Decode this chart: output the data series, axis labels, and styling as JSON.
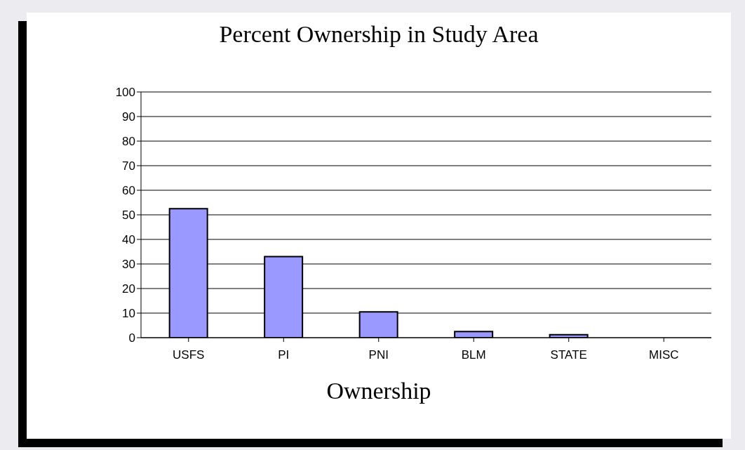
{
  "chart_data": {
    "type": "bar",
    "title": "Percent Ownership in Study Area",
    "xlabel": "Ownership",
    "categories": [
      "USFS",
      "PI",
      "PNI",
      "BLM",
      "STATE",
      "MISC"
    ],
    "values": [
      52.5,
      33,
      10.5,
      2.5,
      1.2,
      0
    ],
    "color": "#9999ff",
    "ylim": [
      0,
      100
    ],
    "yticks": [
      0,
      10,
      20,
      30,
      40,
      50,
      60,
      70,
      80,
      90,
      100
    ],
    "grid": "y",
    "legend": false
  }
}
